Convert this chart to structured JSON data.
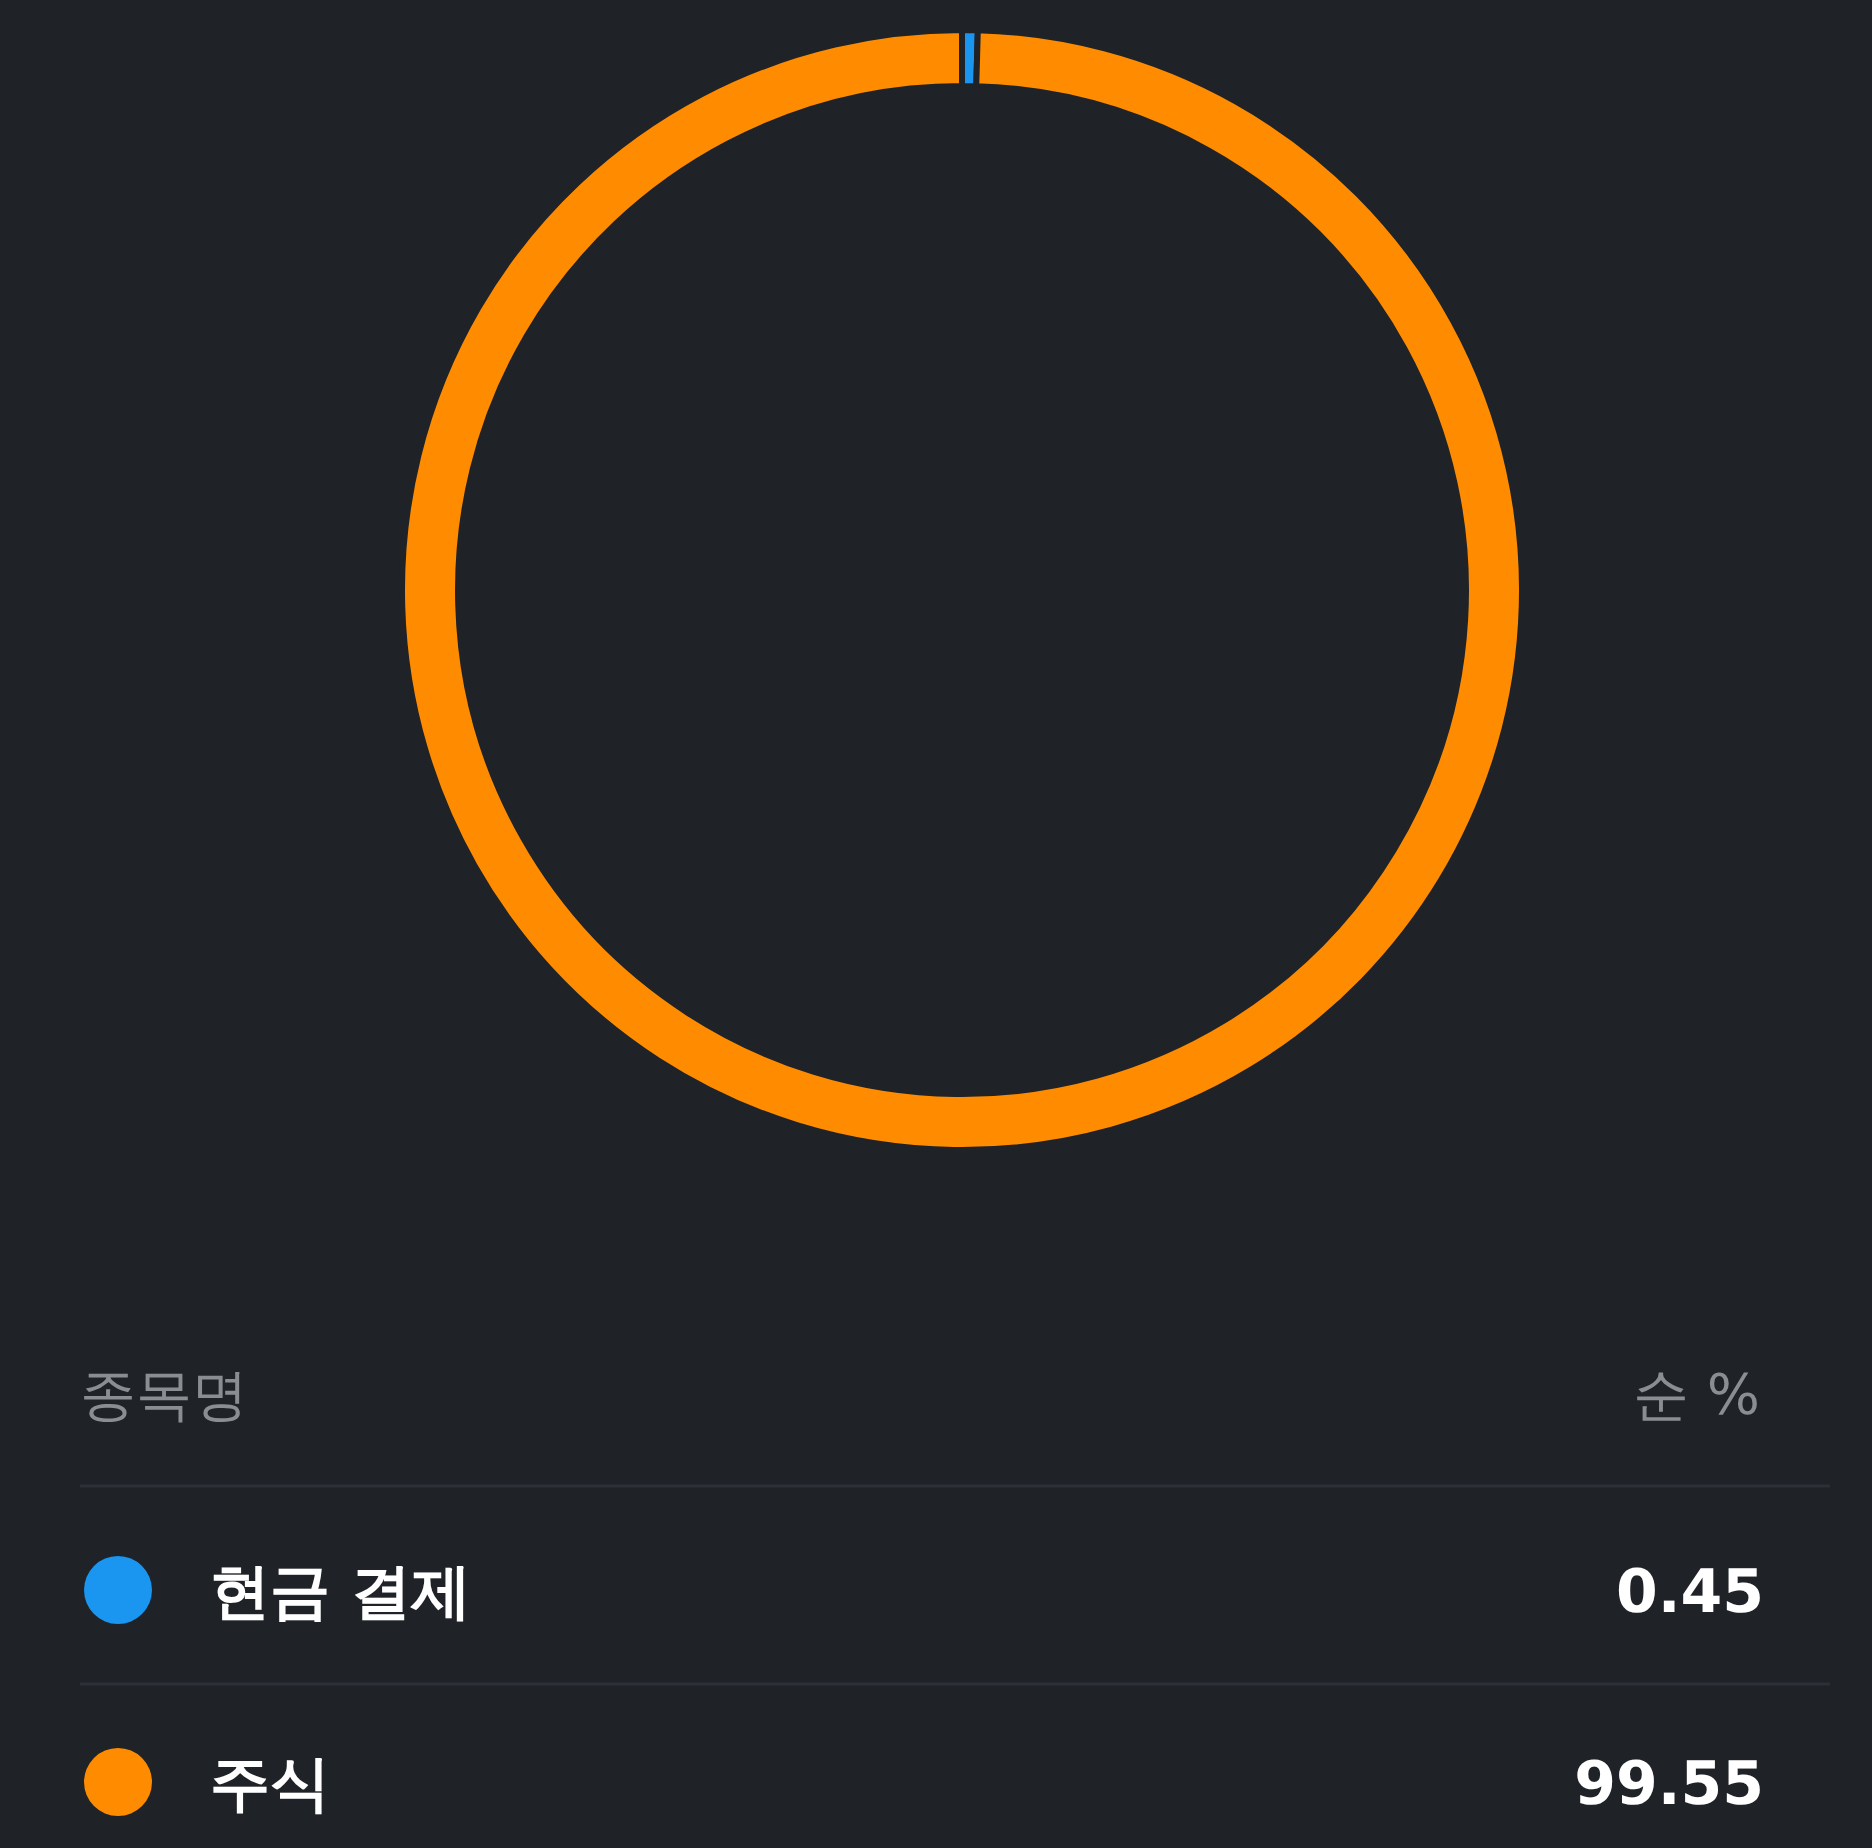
{
  "chart_data": {
    "type": "donut",
    "legend_title": "종목명",
    "annotations": [
      "순 %"
    ],
    "categories": [
      "현금 결제",
      "주식"
    ],
    "values": [
      0.45,
      99.55
    ],
    "colors": [
      "#1a96f0",
      "#ff8c00"
    ],
    "data_labels": true,
    "legend": "bottom"
  }
}
